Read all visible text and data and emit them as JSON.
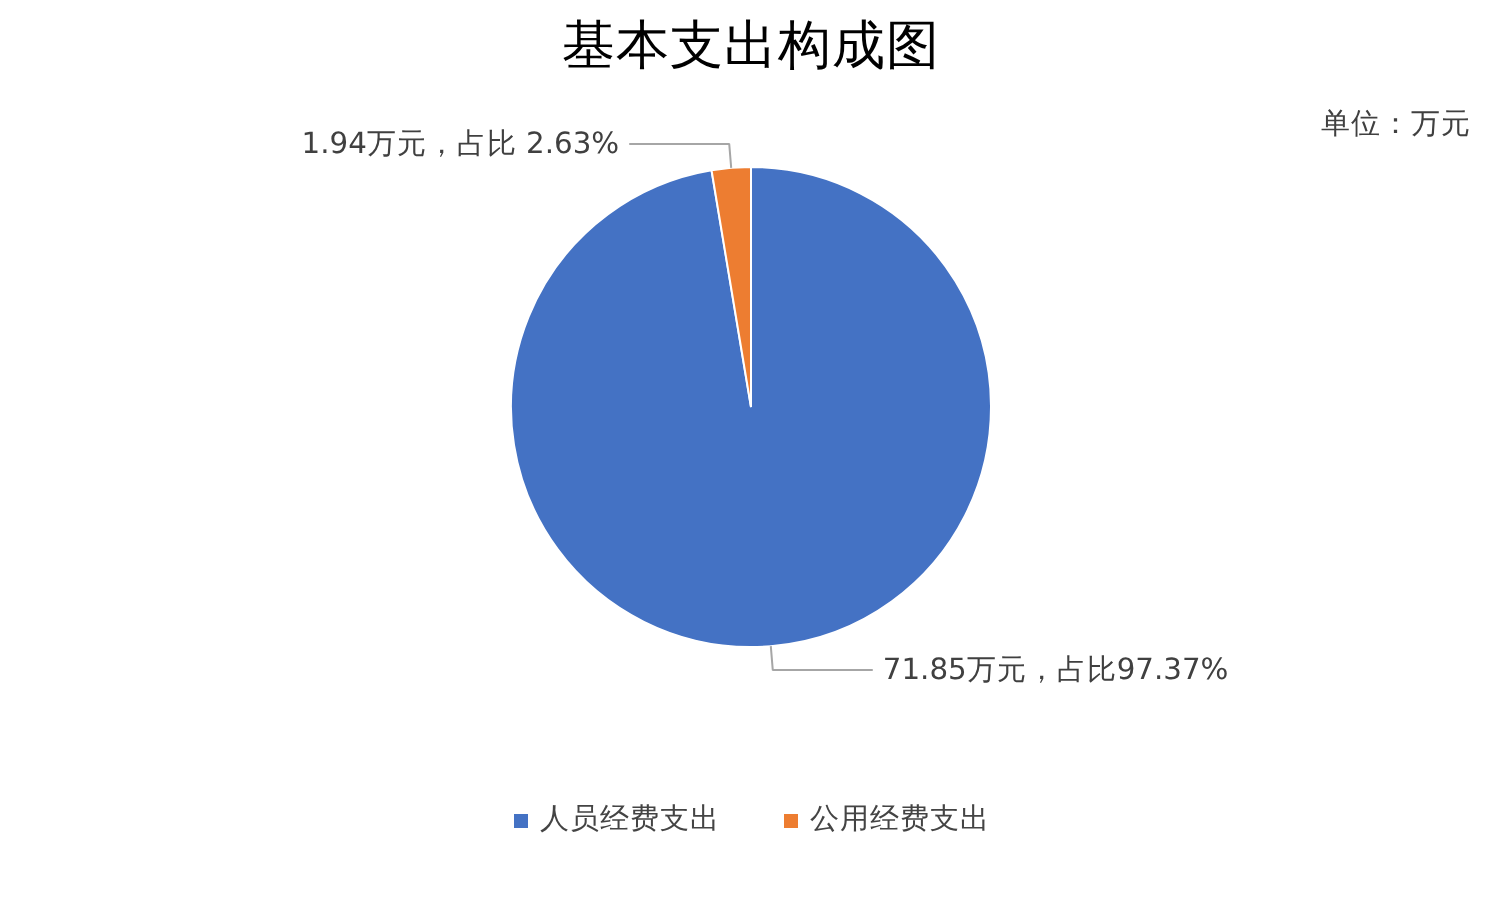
{
  "chart_data": {
    "type": "pie",
    "title": "基本支出构成图",
    "categories": [
      "人员经费支出",
      "公用经费支出"
    ],
    "values": [
      71.85,
      1.94
    ],
    "colors": [
      "#4472c4",
      "#ed7d31"
    ],
    "value_labels": [
      "71.85万元，占比97.37%",
      "1.94万元，占比 2.63%"
    ],
    "annotations": [
      "单位：万元"
    ],
    "legend": "bottom"
  }
}
